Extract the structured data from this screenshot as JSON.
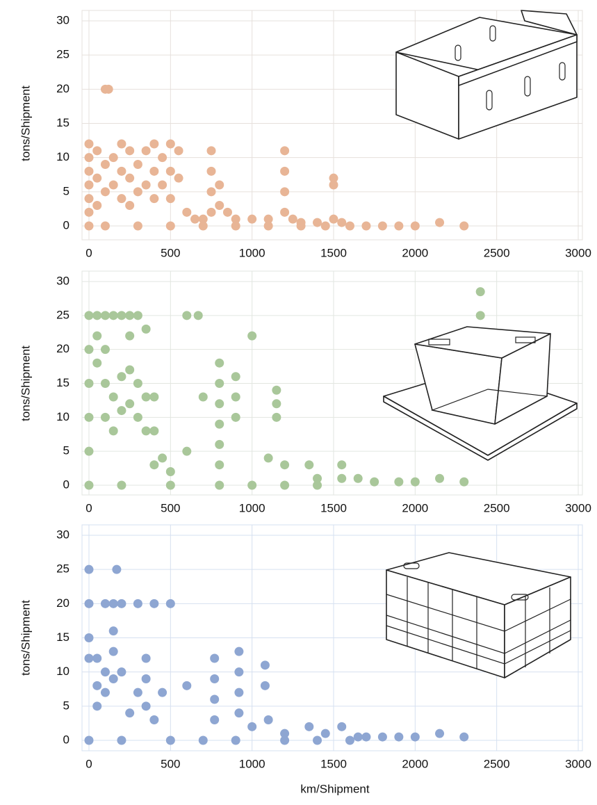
{
  "chart_data": [
    {
      "type": "scatter",
      "ylabel": "tons/Shipment",
      "color": "#e8b596",
      "grid": true,
      "xlim": [
        0,
        3000
      ],
      "ylim": [
        0,
        30
      ],
      "xticks": [
        0,
        500,
        1000,
        1500,
        2000,
        2500,
        3000
      ],
      "yticks": [
        0,
        5,
        10,
        15,
        20,
        25,
        30
      ],
      "x": [
        100,
        120,
        0,
        0,
        0,
        0,
        0,
        0,
        0,
        50,
        50,
        50,
        100,
        100,
        150,
        150,
        200,
        200,
        200,
        250,
        250,
        250,
        300,
        300,
        350,
        350,
        400,
        400,
        400,
        450,
        450,
        500,
        500,
        500,
        550,
        550,
        600,
        650,
        700,
        750,
        750,
        750,
        750,
        800,
        800,
        850,
        900,
        1000,
        1100,
        1200,
        1200,
        1200,
        1200,
        1250,
        1300,
        1400,
        1500,
        1500,
        1500,
        1550,
        1600,
        1700,
        1800,
        1900,
        2000,
        2150,
        2300,
        100,
        300,
        500,
        700,
        900,
        1100,
        1300,
        1450
      ],
      "values": [
        20,
        20,
        12,
        10,
        8,
        6,
        4,
        2,
        0,
        11,
        7,
        3,
        9,
        5,
        10,
        6,
        12,
        8,
        4,
        11,
        7,
        3,
        9,
        5,
        11,
        6,
        12,
        8,
        4,
        10,
        6,
        12,
        8,
        4,
        11,
        7,
        2,
        1,
        1,
        11,
        8,
        5,
        2,
        6,
        3,
        2,
        1,
        1,
        1,
        11,
        8,
        5,
        2,
        1,
        0.5,
        0.5,
        7,
        6,
        1,
        0.5,
        0,
        0,
        0,
        0,
        0,
        0.5,
        0,
        0,
        0,
        0,
        0,
        0,
        0,
        0,
        0
      ]
    },
    {
      "type": "scatter",
      "ylabel": "tons/Shipment",
      "color": "#a9c79a",
      "grid": true,
      "xlim": [
        0,
        3000
      ],
      "ylim": [
        0,
        30
      ],
      "xticks": [
        0,
        500,
        1000,
        1500,
        2000,
        2500,
        3000
      ],
      "yticks": [
        0,
        5,
        10,
        15,
        20,
        25,
        30
      ],
      "x": [
        0,
        50,
        100,
        150,
        200,
        250,
        300,
        0,
        0,
        0,
        0,
        0,
        50,
        50,
        100,
        100,
        100,
        150,
        150,
        200,
        200,
        250,
        250,
        250,
        300,
        300,
        350,
        350,
        350,
        400,
        400,
        400,
        450,
        500,
        600,
        670,
        600,
        700,
        800,
        800,
        800,
        800,
        800,
        800,
        900,
        900,
        900,
        1000,
        1150,
        1150,
        1150,
        1100,
        1200,
        1350,
        1400,
        1550,
        1550,
        1650,
        1750,
        1900,
        2000,
        2150,
        2300,
        2400,
        2400,
        200,
        500,
        800,
        1000,
        1200,
        1400
      ],
      "values": [
        25,
        25,
        25,
        25,
        25,
        25,
        25,
        20,
        15,
        10,
        5,
        0,
        22,
        18,
        20,
        15,
        10,
        13,
        8,
        16,
        11,
        22,
        17,
        12,
        15,
        10,
        23,
        13,
        8,
        13,
        8,
        3,
        4,
        2,
        25,
        25,
        5,
        13,
        18,
        15,
        12,
        9,
        6,
        3,
        16,
        13,
        10,
        22,
        14,
        12,
        10,
        4,
        3,
        3,
        1,
        3,
        1,
        1,
        0.5,
        0.5,
        0.5,
        1,
        0.5,
        28.5,
        25,
        0,
        0,
        0,
        0,
        0,
        0
      ]
    },
    {
      "type": "scatter",
      "ylabel": "tons/Shipment",
      "xlabel": "km/Shipment",
      "color": "#8ea6d2",
      "grid": true,
      "xlim": [
        0,
        3000
      ],
      "ylim": [
        0,
        30
      ],
      "xticks": [
        0,
        500,
        1000,
        1500,
        2000,
        2500,
        3000
      ],
      "yticks": [
        0,
        5,
        10,
        15,
        20,
        25,
        30
      ],
      "x": [
        0,
        170,
        0,
        100,
        150,
        200,
        300,
        400,
        500,
        0,
        0,
        50,
        50,
        50,
        100,
        100,
        150,
        150,
        150,
        200,
        250,
        300,
        350,
        350,
        350,
        400,
        450,
        600,
        770,
        770,
        770,
        770,
        920,
        920,
        920,
        920,
        1000,
        1080,
        1080,
        1100,
        1200,
        1350,
        1450,
        1550,
        1650,
        1700,
        1800,
        1900,
        2000,
        2150,
        2300,
        0,
        200,
        500,
        700,
        900,
        1200,
        1400,
        1600
      ],
      "values": [
        25,
        25,
        20,
        20,
        20,
        20,
        20,
        20,
        20,
        15,
        12,
        12,
        8,
        5,
        10,
        7,
        16,
        13,
        9,
        10,
        4,
        7,
        12,
        9,
        5,
        3,
        7,
        8,
        12,
        9,
        6,
        3,
        13,
        10,
        7,
        4,
        2,
        11,
        8,
        3,
        1,
        2,
        1,
        2,
        0.5,
        0.5,
        0.5,
        0.5,
        0.5,
        1,
        0.5,
        0,
        0,
        0,
        0,
        0,
        0,
        0,
        0
      ]
    }
  ]
}
